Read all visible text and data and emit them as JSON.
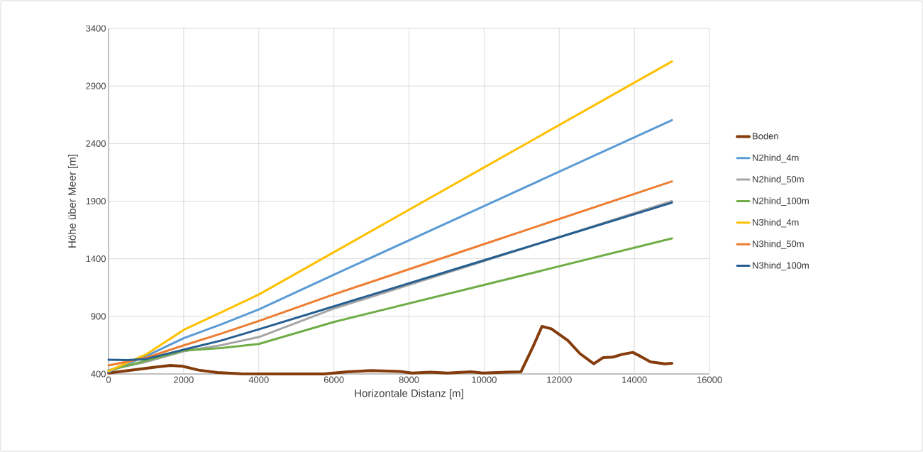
{
  "chart_data": {
    "type": "line",
    "xlabel": "Horizontale Distanz [m]",
    "ylabel": "Höhe über Meer [m]",
    "xlim": [
      0,
      16000
    ],
    "ylim": [
      400,
      3400
    ],
    "xticks": [
      0,
      2000,
      4000,
      6000,
      8000,
      10000,
      12000,
      14000,
      16000
    ],
    "yticks": [
      400,
      900,
      1400,
      1900,
      2400,
      2900,
      3400
    ],
    "grid": true,
    "legend": "right",
    "marker": "none",
    "line_style": "solid",
    "series": [
      {
        "name": "Boden",
        "color": "#843c0c",
        "x": [
          0,
          1266,
          1644,
          1960,
          2400,
          2900,
          3530,
          4790,
          5730,
          6360,
          6990,
          7760,
          8080,
          8580,
          9020,
          9650,
          9970,
          10600,
          10980,
          11290,
          11540,
          11790,
          12230,
          12550,
          12920,
          13170,
          13430,
          13680,
          13960,
          14180,
          14430,
          14810,
          15000
        ],
        "values": [
          408,
          460,
          474,
          468,
          433,
          412,
          402,
          400,
          400,
          418,
          429,
          422,
          408,
          416,
          408,
          418,
          408,
          416,
          418,
          628,
          813,
          792,
          690,
          577,
          488,
          542,
          546,
          570,
          587,
          550,
          505,
          488,
          492
        ]
      },
      {
        "name": "N2hind_4m",
        "color": "#5b9bd5",
        "x": [
          0,
          1000,
          2000,
          3000,
          4000,
          6000,
          10000,
          15000
        ],
        "values": [
          418,
          555,
          710,
          830,
          960,
          1262,
          1858,
          2603
        ]
      },
      {
        "name": "N2hind_50m",
        "color": "#a5a5a5",
        "x": [
          0,
          1000,
          2000,
          3000,
          4000,
          6000,
          10000,
          15000
        ],
        "values": [
          433,
          505,
          597,
          650,
          720,
          967,
          1380,
          1900
        ]
      },
      {
        "name": "N2hind_100m",
        "color": "#70ad47",
        "x": [
          0,
          1000,
          2000,
          3000,
          4000,
          6000,
          10000,
          15000
        ],
        "values": [
          430,
          515,
          603,
          625,
          660,
          851,
          1173,
          1576
        ]
      },
      {
        "name": "N3hind_4m",
        "color": "#ffc000",
        "x": [
          0,
          1000,
          2000,
          3000,
          4000,
          6000,
          10000,
          15000
        ],
        "values": [
          426,
          570,
          782,
          935,
          1089,
          1457,
          2193,
          3113
        ]
      },
      {
        "name": "N3hind_50m",
        "color": "#ed7d31",
        "x": [
          0,
          1000,
          2000,
          3000,
          4000,
          6000,
          10000,
          15000
        ],
        "values": [
          474,
          540,
          648,
          750,
          860,
          1091,
          1527,
          2072
        ]
      },
      {
        "name": "N3hind_100m",
        "color": "#255e91",
        "x": [
          0,
          500,
          1000,
          2000,
          3000,
          4000,
          6000,
          10000,
          15000
        ],
        "values": [
          523,
          520,
          530,
          611,
          690,
          787,
          987,
          1387,
          1887
        ]
      }
    ]
  }
}
